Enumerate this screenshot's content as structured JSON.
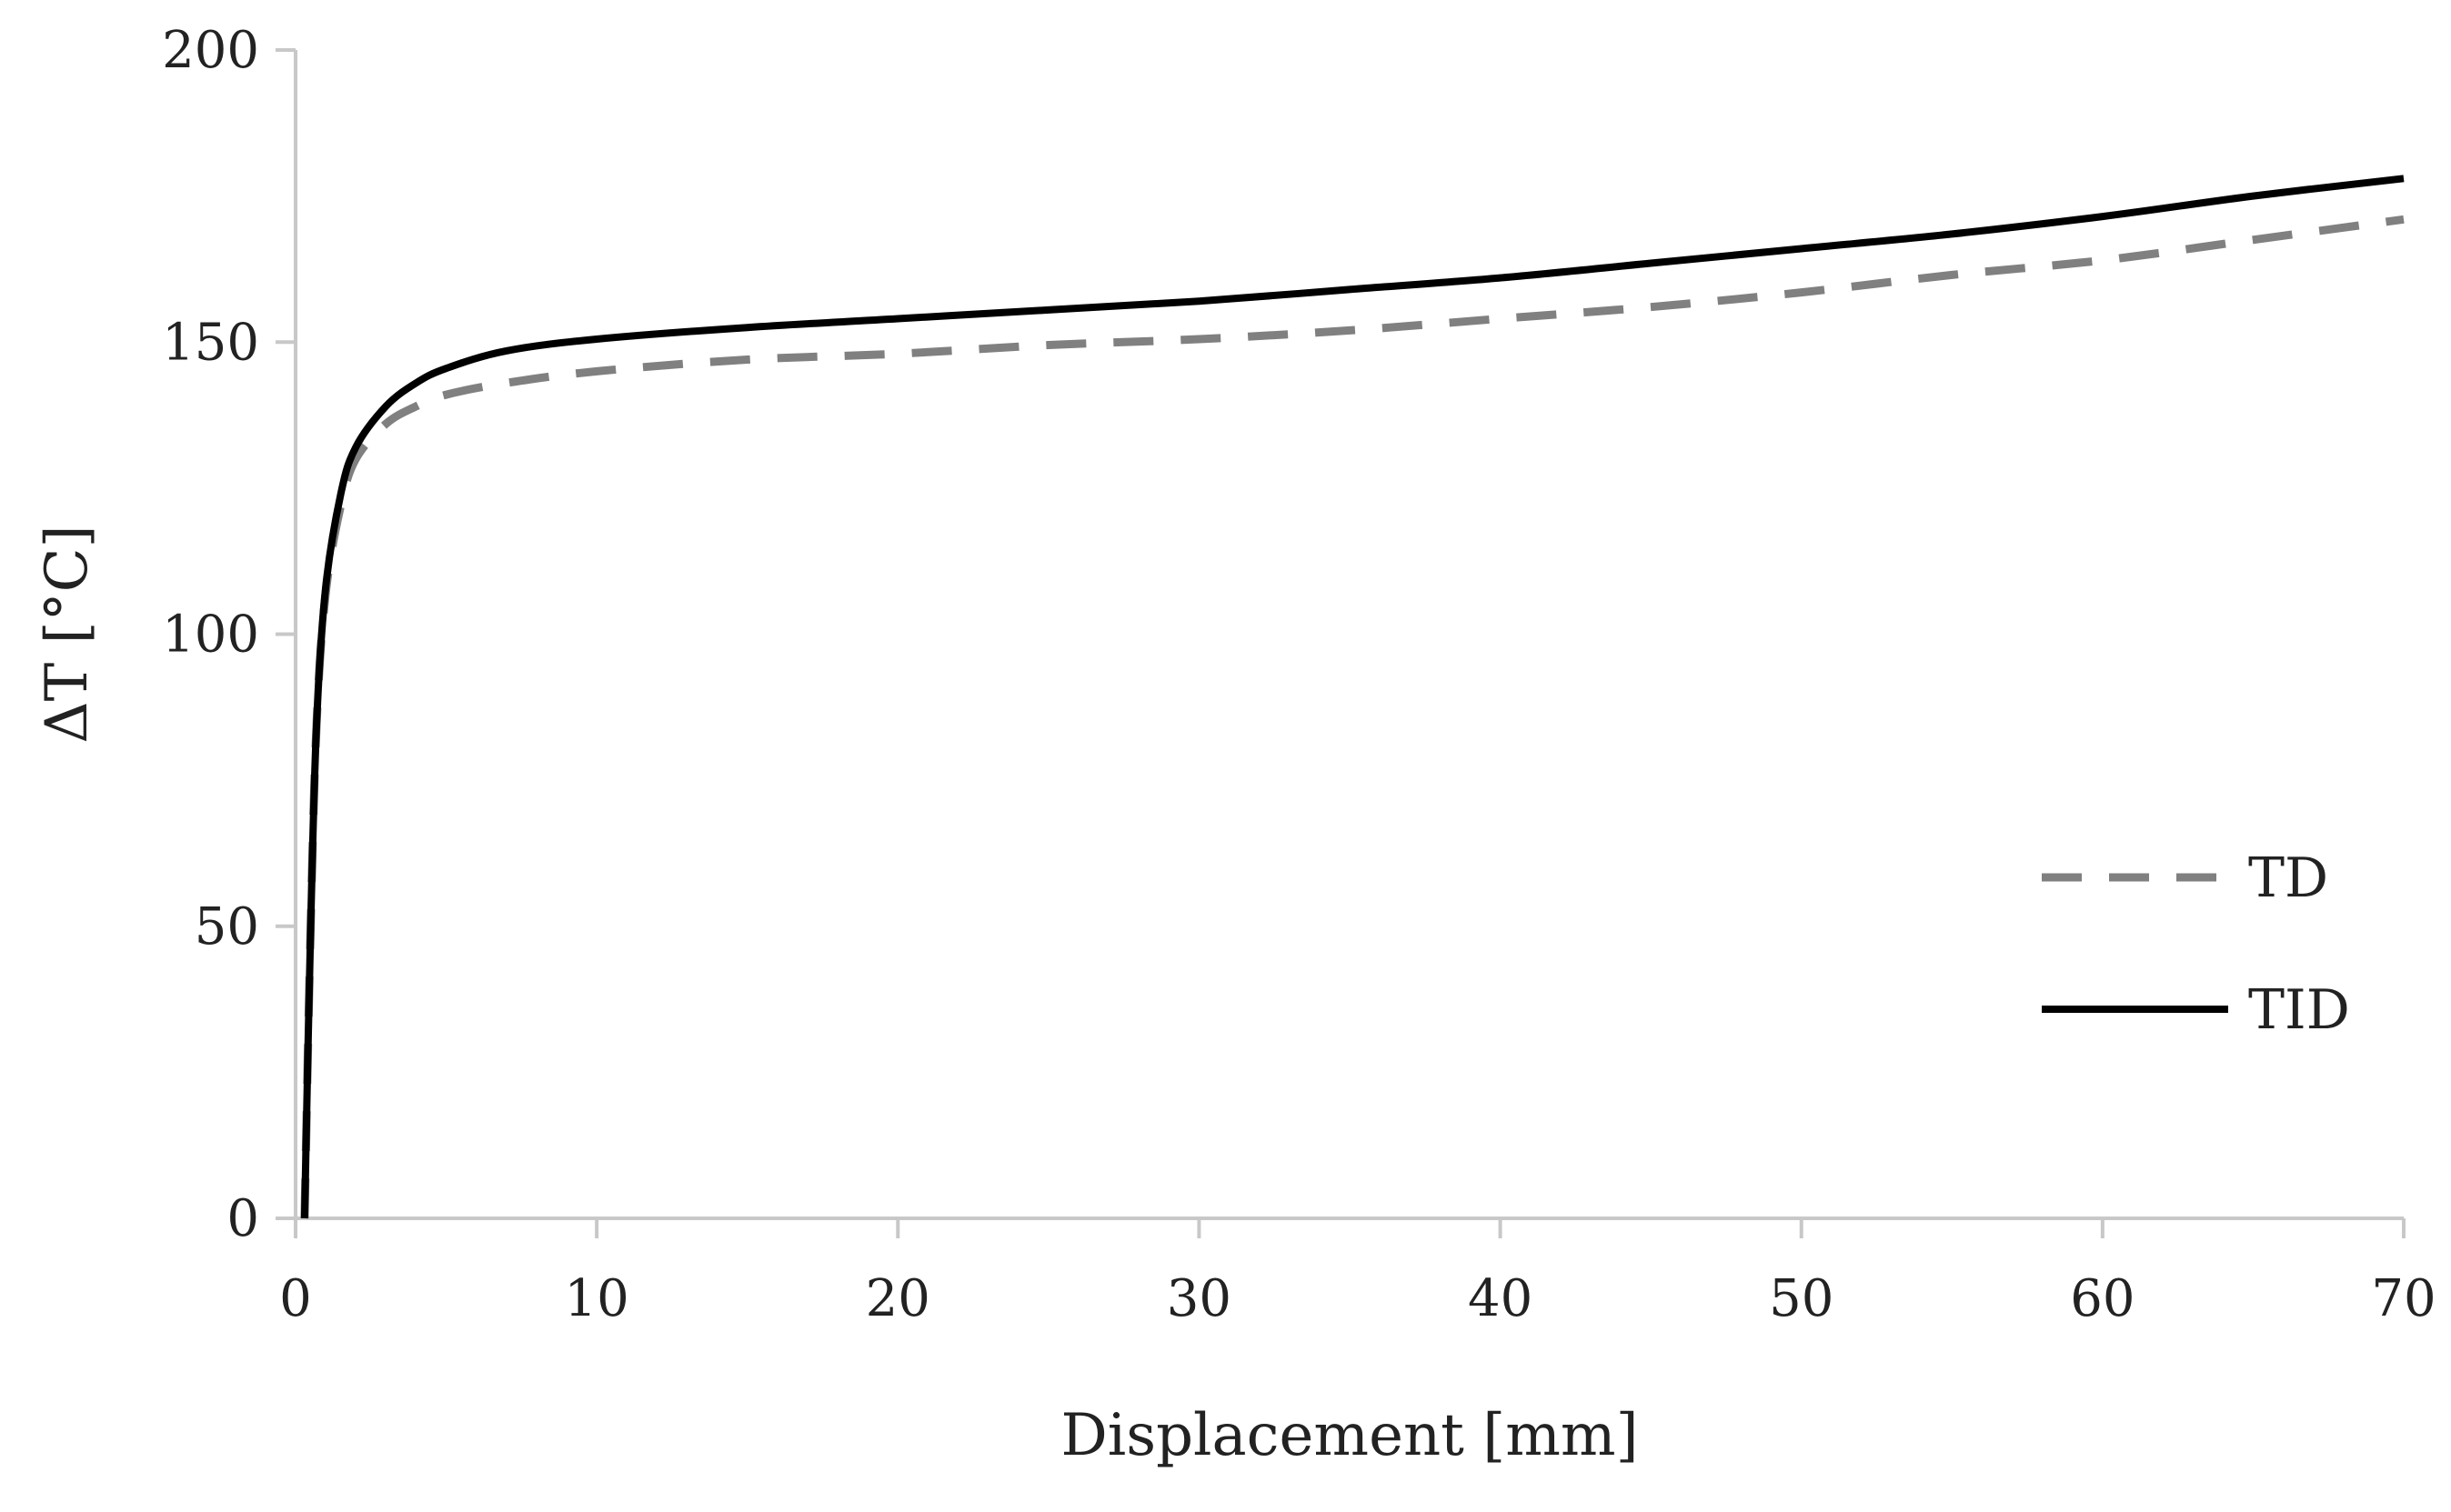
{
  "chart_data": {
    "type": "line",
    "xlabel": "Displacement [mm]",
    "ylabel": "ΔT [°C]",
    "xlim": [
      0,
      70
    ],
    "ylim": [
      0,
      200
    ],
    "x_ticks": [
      "0",
      "10",
      "20",
      "30",
      "40",
      "50",
      "60",
      "70"
    ],
    "y_ticks": [
      "0",
      "50",
      "100",
      "150",
      "200"
    ],
    "grid": false,
    "legend_position": "right",
    "series": [
      {
        "name": "TD",
        "style": "dashed",
        "color": "#808080",
        "x": [
          0.3,
          0.5,
          0.7,
          1,
          1.5,
          2,
          3,
          4,
          5,
          7,
          10,
          15,
          20,
          25,
          30,
          35,
          40,
          45,
          50,
          55,
          60,
          65,
          70
        ],
        "y": [
          0,
          50,
          85,
          107,
          122,
          130,
          136,
          139,
          141,
          143,
          145,
          147,
          148,
          149.5,
          150.5,
          152,
          154,
          156,
          158.5,
          161.5,
          164,
          167.5,
          171
        ]
      },
      {
        "name": "TID",
        "style": "solid",
        "color": "#000000",
        "x": [
          0.3,
          0.5,
          0.7,
          1,
          1.5,
          2,
          3,
          4,
          5,
          7,
          10,
          15,
          20,
          25,
          30,
          35,
          40,
          45,
          50,
          55,
          60,
          65,
          70
        ],
        "y": [
          0,
          50,
          85,
          108,
          124,
          132,
          139,
          143,
          145.5,
          148.5,
          150.5,
          152.5,
          154,
          155.5,
          157,
          159,
          161,
          163.5,
          166,
          168.5,
          171.5,
          175,
          178
        ]
      }
    ]
  }
}
